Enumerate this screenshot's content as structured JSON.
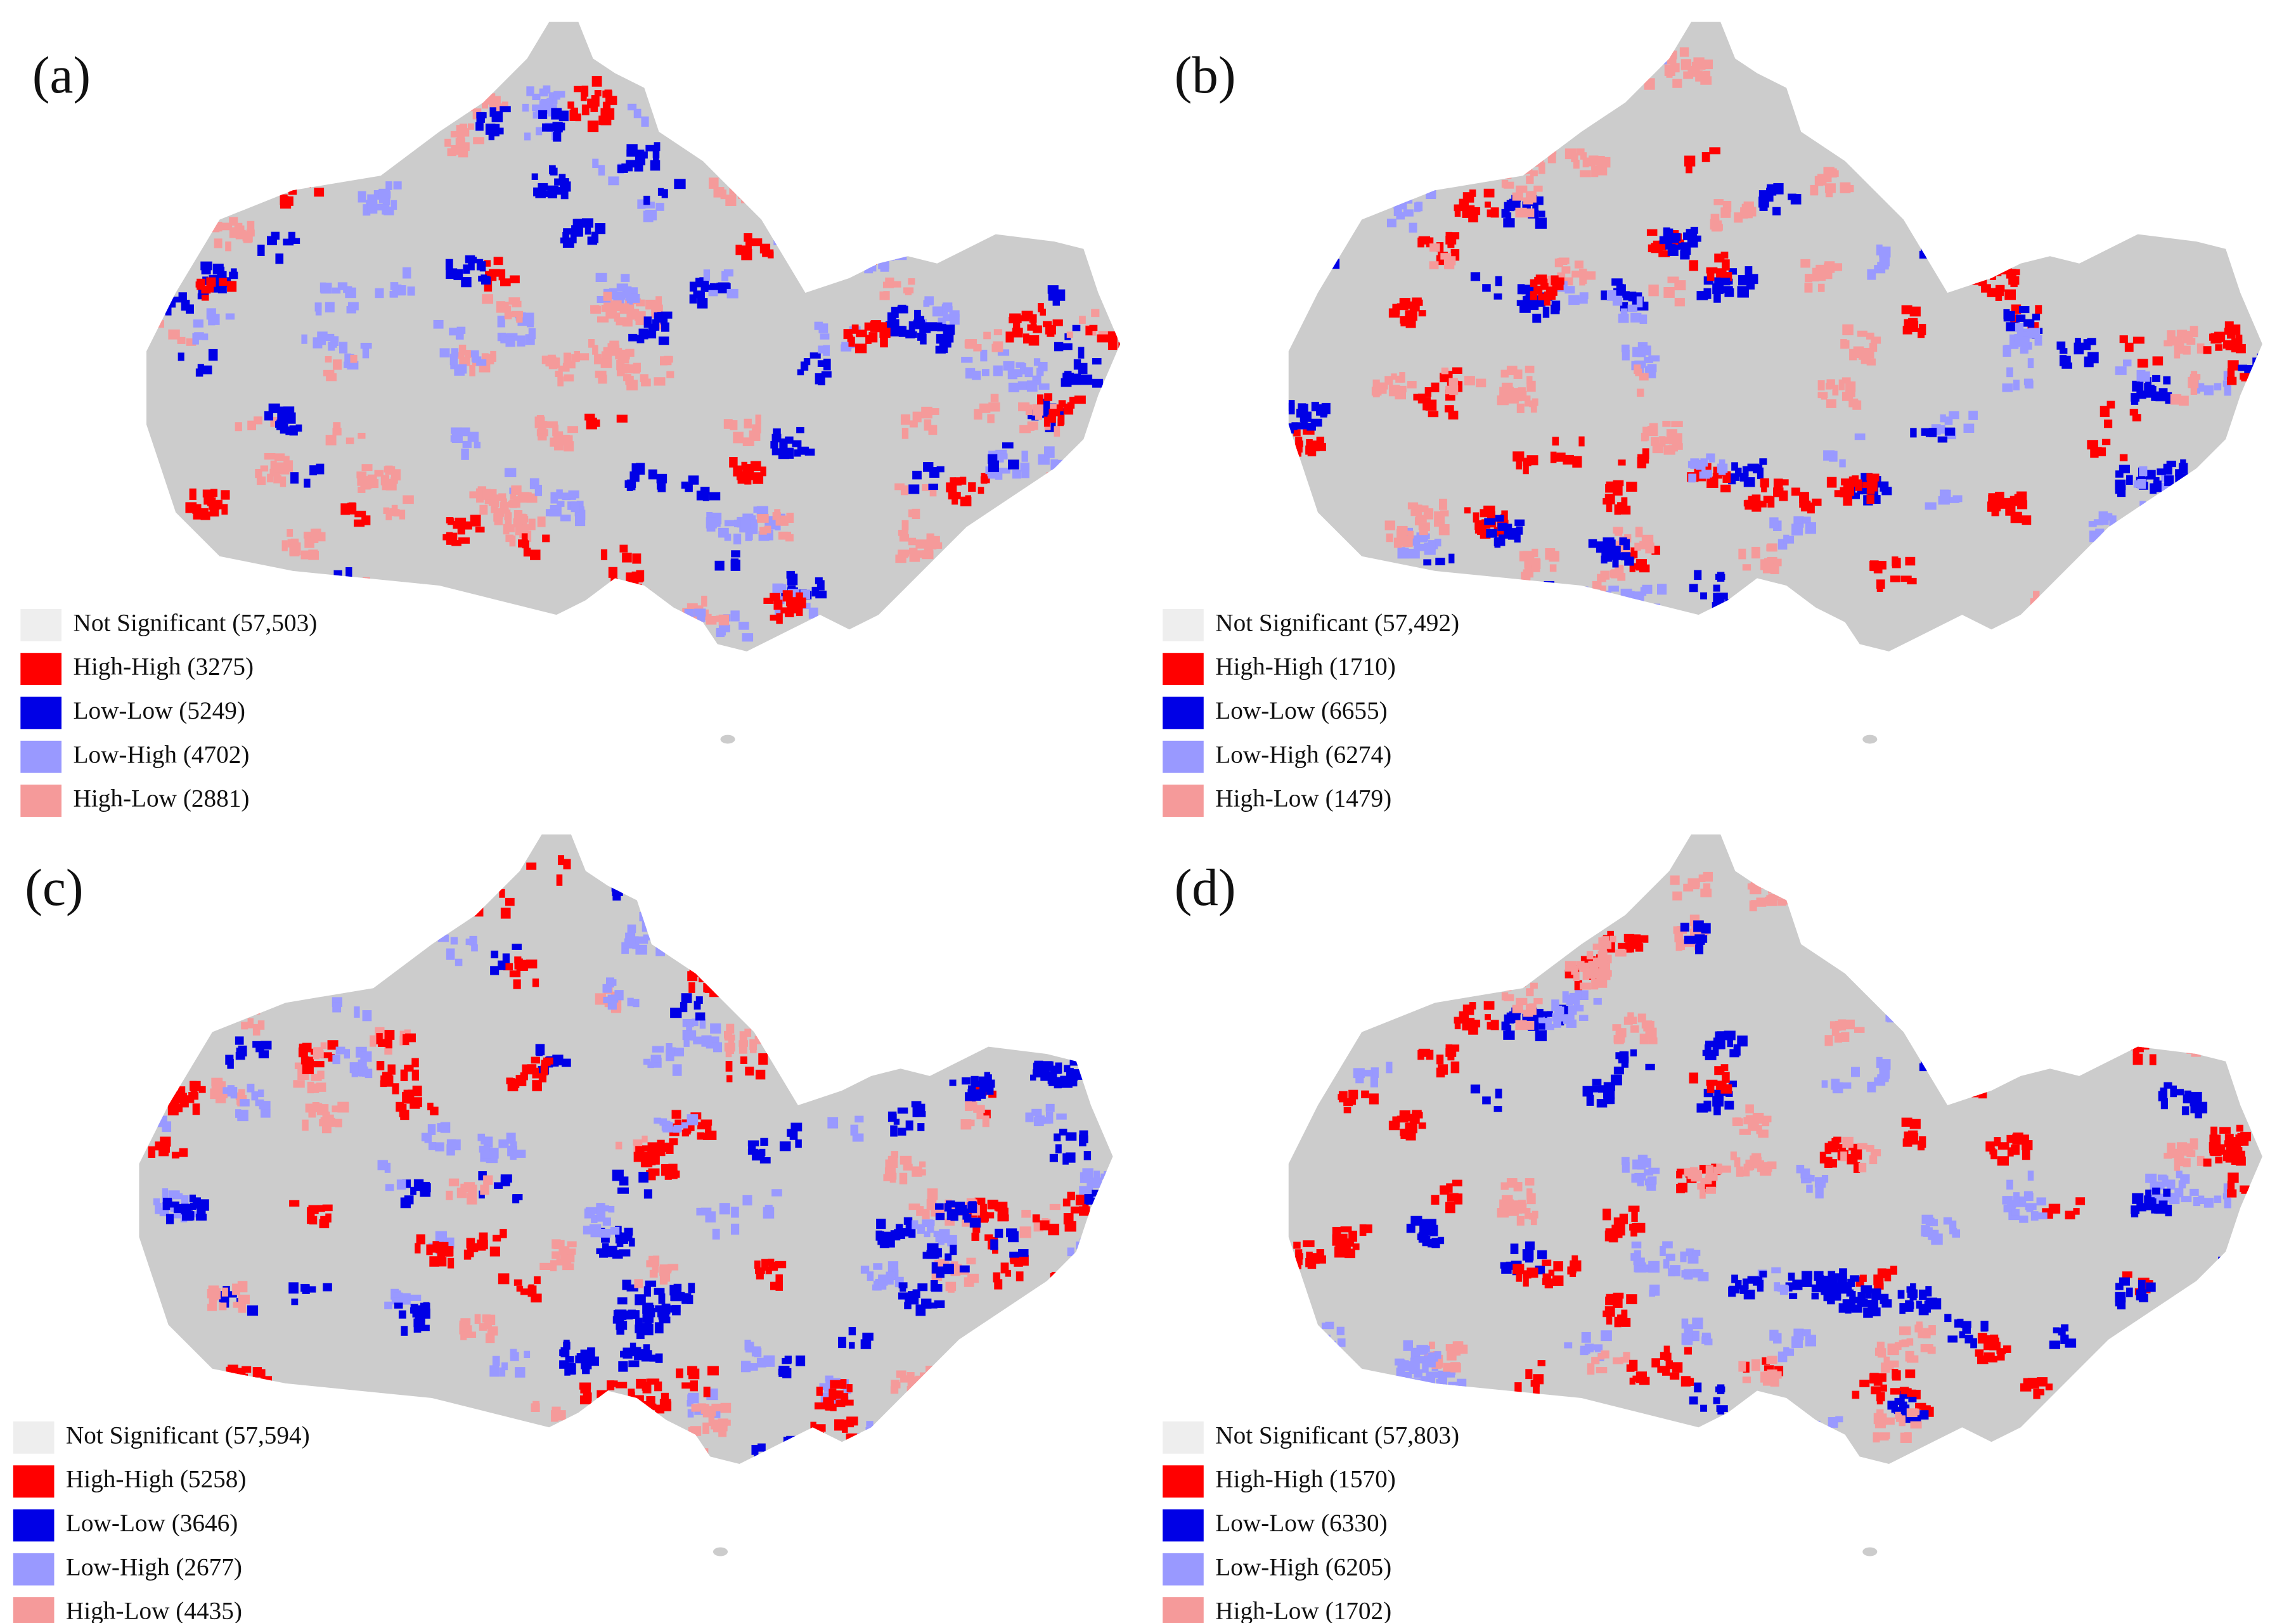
{
  "panels": [
    {
      "label": "(a)",
      "legend": [
        {
          "label": "Not Significant (57,503)",
          "color": "#eeeeee"
        },
        {
          "label": "High-High (3275)",
          "color": "#ff0000"
        },
        {
          "label": "Low-Low (5249)",
          "color": "#0000e6"
        },
        {
          "label": "Low-High (4702)",
          "color": "#9999ff"
        },
        {
          "label": "High-Low (2881)",
          "color": "#f59a9a"
        }
      ]
    },
    {
      "label": "(b)",
      "legend": [
        {
          "label": "Not Significant (57,492)",
          "color": "#eeeeee"
        },
        {
          "label": "High-High (1710)",
          "color": "#ff0000"
        },
        {
          "label": "Low-Low (6655)",
          "color": "#0000e6"
        },
        {
          "label": "Low-High (6274)",
          "color": "#9999ff"
        },
        {
          "label": "High-Low (1479)",
          "color": "#f59a9a"
        }
      ]
    },
    {
      "label": "(c)",
      "legend": [
        {
          "label": "Not Significant (57,594)",
          "color": "#eeeeee"
        },
        {
          "label": "High-High (5258)",
          "color": "#ff0000"
        },
        {
          "label": "Low-Low (3646)",
          "color": "#0000e6"
        },
        {
          "label": "Low-High (2677)",
          "color": "#9999ff"
        },
        {
          "label": "High-Low (4435)",
          "color": "#f59a9a"
        }
      ]
    },
    {
      "label": "(d)",
      "legend": [
        {
          "label": "Not Significant (57,803)",
          "color": "#eeeeee"
        },
        {
          "label": "High-High (1570)",
          "color": "#ff0000"
        },
        {
          "label": "Low-Low (6330)",
          "color": "#0000e6"
        },
        {
          "label": "Low-High (6205)",
          "color": "#9999ff"
        },
        {
          "label": "High-Low (1702)",
          "color": "#f59a9a"
        }
      ]
    }
  ]
}
